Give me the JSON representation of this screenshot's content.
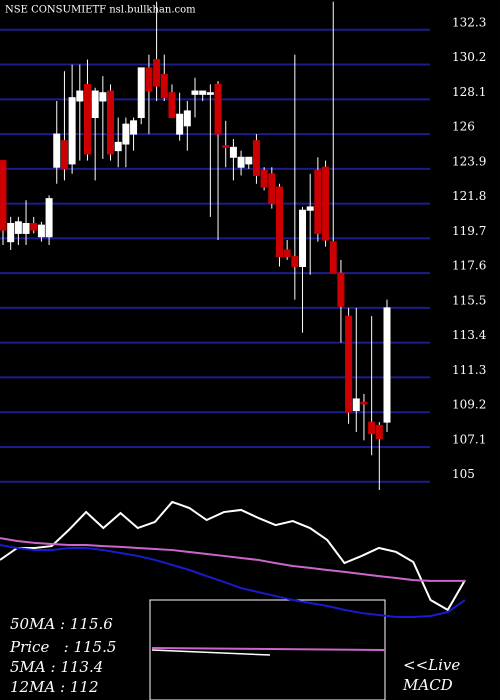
{
  "chart_data": [
    {
      "type": "candlestick",
      "title": "NSE CONSUMIETF nsl.bullkhan.com",
      "open": [
        124.4,
        119.5,
        120,
        120,
        120.6,
        119.8,
        119.8,
        124,
        125.6,
        124.2,
        128,
        129,
        127,
        128,
        128.6,
        125,
        125.4,
        126,
        127,
        130,
        130.5,
        129.6,
        128.5,
        126,
        126.5,
        128.4,
        128.4,
        128.4,
        129,
        125.3,
        124.6,
        124,
        124.2,
        125.6,
        123.8,
        123.6,
        122.8,
        119,
        118.6,
        118,
        121.4,
        123.8,
        124,
        119.5,
        117.6,
        115,
        109.3,
        109.8,
        108.6,
        108.4,
        108.6
      ],
      "high": [
        124.4,
        121,
        121,
        122,
        121,
        120.7,
        122.3,
        128,
        129.8,
        130.2,
        130.2,
        130.5,
        128.8,
        129.5,
        129,
        127,
        127,
        127,
        130,
        130.8,
        134,
        130.8,
        129,
        128.5,
        128,
        129.4,
        128.6,
        129,
        129.2,
        126.8,
        125.7,
        125,
        124.6,
        126,
        124,
        124,
        123,
        119.6,
        130.8,
        121.6,
        123.6,
        124.6,
        124.4,
        134,
        118.4,
        115.5,
        115.5,
        110.3,
        115,
        108.6,
        116
      ],
      "low": [
        119.3,
        119,
        119.3,
        119.3,
        120,
        119.5,
        119.3,
        123,
        123.2,
        123.6,
        124.4,
        124.4,
        123.2,
        124.5,
        124.4,
        124,
        124,
        125,
        126.6,
        126,
        128,
        128,
        127,
        125.6,
        125,
        127,
        128,
        121,
        119.6,
        124,
        123.2,
        123.5,
        123.9,
        123,
        122.6,
        121.5,
        118,
        118.4,
        116,
        114,
        117.5,
        119.5,
        119.2,
        117.6,
        113.4,
        108.5,
        108,
        107.5,
        106.6,
        104.5,
        108
      ],
      "close": [
        120.2,
        120.6,
        120.7,
        120.6,
        120.2,
        120.5,
        122.1,
        126,
        123.9,
        128.2,
        128.6,
        124.8,
        128.6,
        128.5,
        124.8,
        125.5,
        126.6,
        126.8,
        130,
        128.6,
        128.9,
        128.2,
        127,
        127.2,
        127.4,
        128.6,
        128.6,
        128.5,
        126,
        125.2,
        125.2,
        124.6,
        124.6,
        123.5,
        122.8,
        121.8,
        118.6,
        118.6,
        118,
        121.4,
        121.6,
        120,
        119.6,
        117.6,
        115.6,
        109.2,
        110,
        109.7,
        107.9,
        107.6,
        115.5
      ],
      "up_color": "#ffffff",
      "down_color": "#cc0000",
      "ylim": [
        104.5,
        134.1
      ],
      "yticks": [
        132.3,
        130.2,
        128.1,
        126,
        123.9,
        121.8,
        119.7,
        117.6,
        115.5,
        113.4,
        111.3,
        109.2,
        107.1,
        105
      ],
      "grid": true,
      "grid_color": "#1c1c8c"
    },
    {
      "type": "line",
      "series": [
        {
          "color": "#ffffff",
          "values": [
            66.7,
            72.4,
            72.4,
            73.3,
            81,
            89.5,
            81.9,
            89,
            81.9,
            84.8,
            94.3,
            91.4,
            85.7,
            89.5,
            90.5,
            86.7,
            83.3,
            85.2,
            81.9,
            76.2,
            65.2,
            68.6,
            72.4,
            70.5,
            65.7,
            47.6,
            42.9,
            57.1
          ]
        },
        {
          "color": "#cc66cc",
          "values": [
            77.1,
            75.7,
            74.8,
            74.3,
            73.8,
            73.8,
            73.3,
            72.9,
            72.4,
            71.9,
            71.4,
            70.5,
            69.5,
            68.6,
            67.6,
            66.7,
            65.2,
            63.8,
            62.9,
            61.9,
            61,
            60,
            59,
            58.1,
            57.1,
            56.7,
            56.7,
            56.7
          ]
        },
        {
          "color": "#1a1ad0",
          "values": [
            73.8,
            72.4,
            71.4,
            71.4,
            72.4,
            72.4,
            71.4,
            70,
            68.6,
            66.7,
            64.3,
            61.9,
            59,
            56.2,
            53.3,
            51.4,
            49.5,
            47.6,
            46.2,
            44.8,
            42.9,
            41.4,
            40.5,
            39.5,
            39.5,
            40,
            41.9,
            47.6
          ]
        }
      ],
      "ylim": [
        0,
        100
      ],
      "annotations": [
        "50MA : 115.6",
        "Price   : 115.5",
        "5MA : 113.4",
        "12MA : 112",
        "<<Live",
        "MACD"
      ]
    }
  ]
}
